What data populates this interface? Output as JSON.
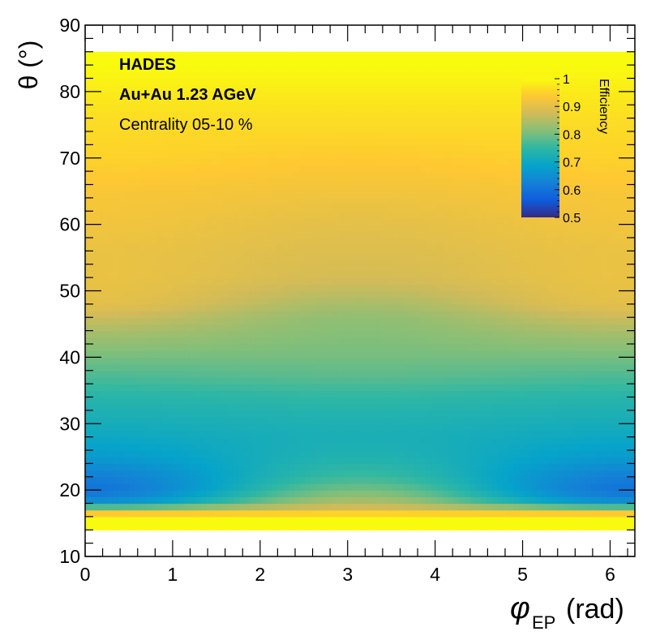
{
  "chart_data": {
    "type": "heatmap",
    "xlabel_symbol": "φ",
    "xlabel_sub": "EP",
    "xlabel_unit": "(rad)",
    "ylabel": "θ (°)",
    "xlim": [
      0,
      6.283
    ],
    "ylim": [
      10,
      90
    ],
    "xticks": [
      "0",
      "1",
      "2",
      "3",
      "4",
      "5",
      "6"
    ],
    "yticks": [
      "10",
      "20",
      "30",
      "40",
      "50",
      "60",
      "70",
      "80",
      "90"
    ],
    "filled_theta_range": [
      14,
      86
    ],
    "colorbar": {
      "title": "Efficiency",
      "range": [
        0.5,
        1.0
      ],
      "ticks": [
        "0.5",
        "0.6",
        "0.7",
        "0.8",
        "0.9",
        "1"
      ],
      "colors": [
        "#352a87",
        "#0f5cdd",
        "#1481d6",
        "#06a4ca",
        "#2eb7a4",
        "#87bf77",
        "#d1bb59",
        "#fec832",
        "#f9fb0e"
      ]
    },
    "annotations": {
      "experiment": "HADES",
      "system": "Au+Au 1.23 AGeV",
      "centrality": "Centrality 05-10 %"
    },
    "efficiency_profile": {
      "theta": [
        14,
        16,
        17,
        18,
        20,
        22,
        25,
        28,
        31,
        34,
        37,
        40,
        43,
        46,
        48,
        52,
        56,
        60,
        65,
        70,
        75,
        80,
        84,
        86
      ],
      "at_phi_0": [
        1.0,
        1.0,
        0.88,
        0.66,
        0.6,
        0.62,
        0.67,
        0.7,
        0.72,
        0.74,
        0.77,
        0.8,
        0.83,
        0.87,
        0.9,
        0.91,
        0.91,
        0.92,
        0.93,
        0.95,
        0.96,
        0.98,
        1.0,
        1.0
      ],
      "at_phi_pi": [
        1.0,
        1.0,
        0.9,
        0.85,
        0.8,
        0.76,
        0.73,
        0.72,
        0.73,
        0.75,
        0.78,
        0.8,
        0.81,
        0.82,
        0.84,
        0.88,
        0.89,
        0.9,
        0.92,
        0.94,
        0.96,
        0.98,
        1.0,
        1.0
      ]
    }
  }
}
